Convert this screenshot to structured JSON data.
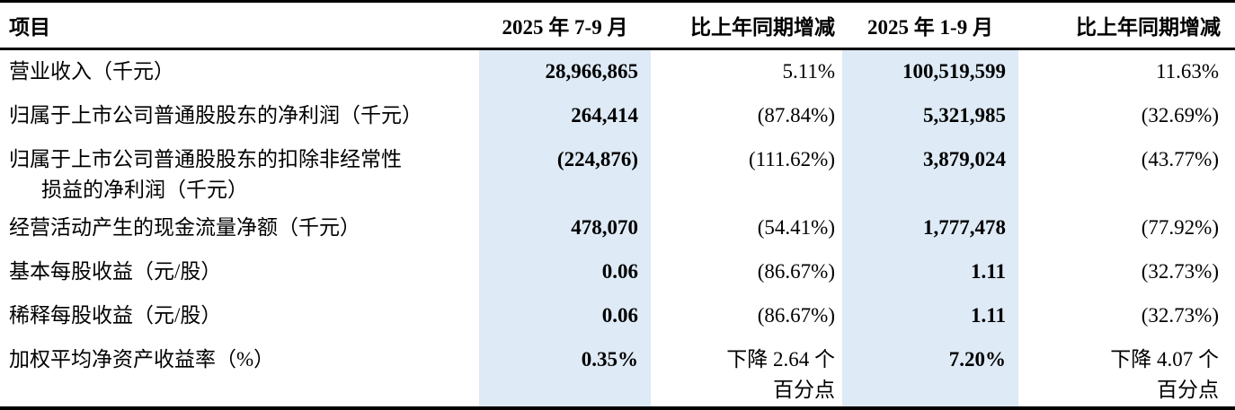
{
  "theme": {
    "highlight_color": "#deeaf6",
    "rule_color": "#000000",
    "text_color": "#000000",
    "background_color": "#ffffff"
  },
  "table": {
    "headers": {
      "item": "项目",
      "current_quarter": "2025 年 7-9 月",
      "quarter_yoy": "比上年同期增减",
      "ytd": "2025 年 1-9 月",
      "ytd_yoy": "比上年同期增减"
    },
    "rows": [
      {
        "item": "营业收入（千元）",
        "current_quarter": "28,966,865",
        "quarter_yoy": "5.11%",
        "ytd": "100,519,599",
        "ytd_yoy": "11.63%"
      },
      {
        "item": "归属于上市公司普通股股东的净利润（千元）",
        "current_quarter": "264,414",
        "quarter_yoy": "(87.84%)",
        "ytd": "5,321,985",
        "ytd_yoy": "(32.69%)"
      },
      {
        "item": "归属于上市公司普通股股东的扣除非经常性\n损益的净利润（千元）",
        "current_quarter": "(224,876)",
        "quarter_yoy": "(111.62%)",
        "ytd": "3,879,024",
        "ytd_yoy": "(43.77%)"
      },
      {
        "item": "经营活动产生的现金流量净额（千元）",
        "current_quarter": "478,070",
        "quarter_yoy": "(54.41%)",
        "ytd": "1,777,478",
        "ytd_yoy": "(77.92%)"
      },
      {
        "item": "基本每股收益（元/股）",
        "current_quarter": "0.06",
        "quarter_yoy": "(86.67%)",
        "ytd": "1.11",
        "ytd_yoy": "(32.73%)"
      },
      {
        "item": "稀释每股收益（元/股）",
        "current_quarter": "0.06",
        "quarter_yoy": "(86.67%)",
        "ytd": "1.11",
        "ytd_yoy": "(32.73%)"
      },
      {
        "item": "加权平均净资产收益率（%）",
        "current_quarter": "0.35%",
        "quarter_yoy": "下降 2.64 个\n百分点",
        "ytd": "7.20%",
        "ytd_yoy": "下降 4.07 个\n百分点"
      }
    ]
  }
}
